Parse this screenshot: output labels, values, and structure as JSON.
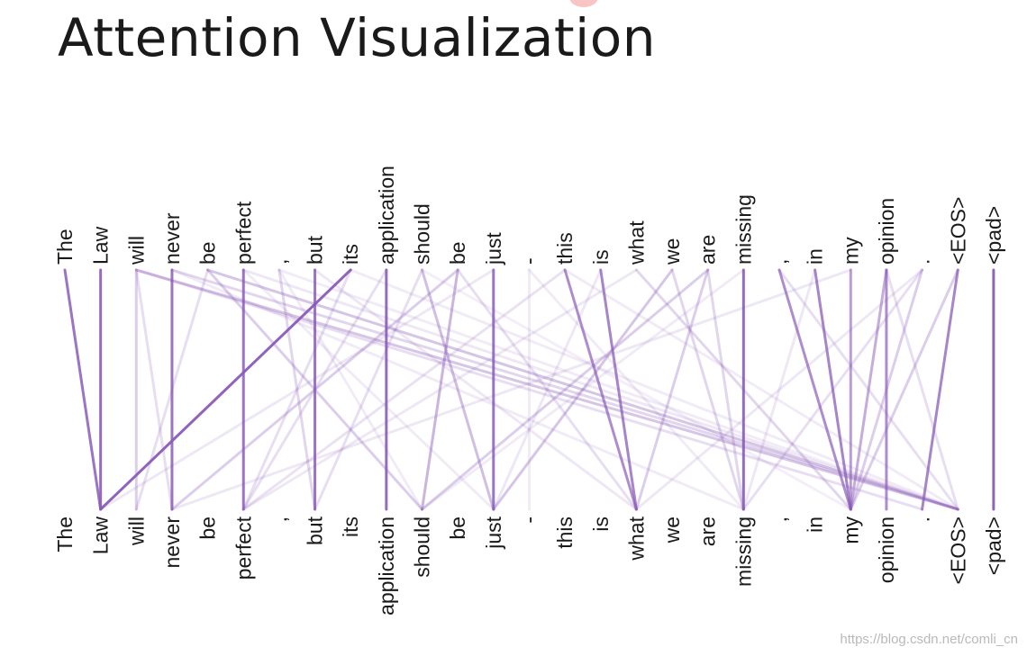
{
  "title": "Attention Visualization",
  "watermark": "https://blog.csdn.net/comli_cn",
  "colors": {
    "line": "#8a5cb8",
    "text": "#1a1a1a"
  },
  "tokens": [
    "The",
    "Law",
    "will",
    "never",
    "be",
    "perfect",
    ",",
    "but",
    "its",
    "application",
    "should",
    "be",
    "just",
    "-",
    "this",
    "is",
    "what",
    "we",
    "are",
    "missing",
    ",",
    "in",
    "my",
    "opinion",
    ".",
    "<EOS>",
    "<pad>"
  ],
  "attention": [
    [
      0,
      1,
      0.85
    ],
    [
      1,
      1,
      0.9
    ],
    [
      2,
      2,
      0.3
    ],
    [
      3,
      3,
      0.85
    ],
    [
      5,
      5,
      0.85
    ],
    [
      7,
      7,
      0.85
    ],
    [
      9,
      9,
      0.9
    ],
    [
      12,
      12,
      0.85
    ],
    [
      19,
      19,
      0.9
    ],
    [
      23,
      23,
      0.7
    ],
    [
      26,
      26,
      0.95
    ],
    [
      8,
      1,
      0.95
    ],
    [
      10,
      12,
      0.4
    ],
    [
      11,
      10,
      0.45
    ],
    [
      14,
      16,
      0.7
    ],
    [
      15,
      16,
      0.75
    ],
    [
      13,
      13,
      0.12
    ],
    [
      20,
      22,
      0.7
    ],
    [
      21,
      22,
      0.75
    ],
    [
      22,
      22,
      0.6
    ],
    [
      23,
      22,
      0.5
    ],
    [
      24,
      22,
      0.3
    ],
    [
      25,
      24,
      0.75
    ],
    [
      2,
      25,
      0.35
    ],
    [
      4,
      25,
      0.35
    ],
    [
      3,
      25,
      0.25
    ],
    [
      2,
      24,
      0.2
    ],
    [
      5,
      25,
      0.15
    ],
    [
      6,
      25,
      0.12
    ],
    [
      11,
      3,
      0.3
    ],
    [
      18,
      10,
      0.3
    ],
    [
      17,
      12,
      0.35
    ],
    [
      16,
      22,
      0.25
    ],
    [
      4,
      10,
      0.3
    ],
    [
      18,
      16,
      0.3
    ],
    [
      17,
      19,
      0.25
    ],
    [
      18,
      19,
      0.25
    ],
    [
      25,
      22,
      0.3
    ],
    [
      8,
      5,
      0.2
    ],
    [
      6,
      7,
      0.25
    ],
    [
      9,
      5,
      0.2
    ],
    [
      24,
      19,
      0.2
    ],
    [
      14,
      5,
      0.18
    ],
    [
      11,
      16,
      0.2
    ],
    [
      12,
      1,
      0.15
    ],
    [
      7,
      16,
      0.15
    ],
    [
      10,
      7,
      0.2
    ],
    [
      4,
      2,
      0.2
    ],
    [
      16,
      5,
      0.15
    ],
    [
      21,
      19,
      0.15
    ],
    [
      20,
      25,
      0.2
    ],
    [
      22,
      3,
      0.15
    ],
    [
      15,
      12,
      0.15
    ],
    [
      13,
      19,
      0.12
    ],
    [
      24,
      16,
      0.15
    ],
    [
      19,
      10,
      0.12
    ],
    [
      2,
      3,
      0.2
    ],
    [
      23,
      25,
      0.2
    ],
    [
      6,
      10,
      0.12
    ],
    [
      3,
      19,
      0.12
    ],
    [
      5,
      12,
      0.12
    ],
    [
      8,
      25,
      0.12
    ],
    [
      10,
      22,
      0.1
    ],
    [
      14,
      25,
      0.12
    ]
  ]
}
